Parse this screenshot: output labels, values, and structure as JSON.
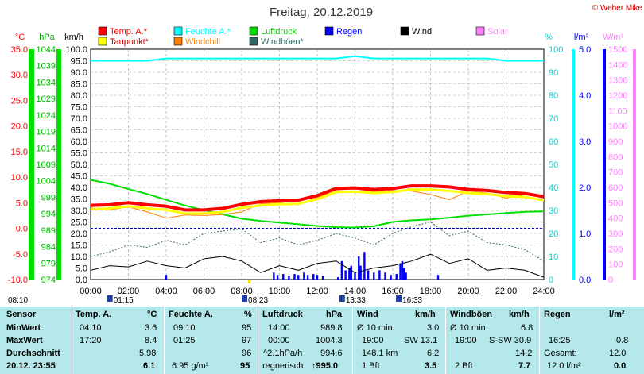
{
  "chart_data": {
    "type": "line",
    "title": "Freitag, 20.12.2019",
    "copyright": "© Weber Mike",
    "legend": [
      {
        "label": "Temp. A.*",
        "color": "#ff0000"
      },
      {
        "label": "Feuchte A.*",
        "color": "#00ffff"
      },
      {
        "label": "Luftdruck",
        "color": "#00e000"
      },
      {
        "label": "Regen",
        "color": "#0000ff"
      },
      {
        "label": "Wind",
        "color": "#000000"
      },
      {
        "label": "Solar",
        "color": "#ff80ff"
      },
      {
        "label": "Taupunkt*",
        "color": "#ffff00"
      },
      {
        "label": "Windchill",
        "color": "#ff8000"
      },
      {
        "label": "Windböen*",
        "color": "#336666"
      }
    ],
    "axes": {
      "temp": {
        "unit": "°C",
        "ticks": [
          "35.0",
          "30.0",
          "25.0",
          "20.0",
          "15.0",
          "10.0",
          "5.0",
          "0.0",
          "-5.0",
          "-10.0"
        ],
        "range": [
          -10,
          35
        ],
        "color": "#ff0000"
      },
      "pressure": {
        "unit": "hPa",
        "ticks": [
          "1044",
          "1039",
          "1034",
          "1029",
          "1024",
          "1019",
          "1014",
          "1009",
          "1004",
          "999",
          "994",
          "989",
          "984",
          "979",
          "974"
        ],
        "range": [
          974,
          1044
        ],
        "color": "#00b000"
      },
      "wind": {
        "unit": "km/h",
        "ticks": [
          "100.0",
          "95.0",
          "90.0",
          "85.0",
          "80.0",
          "75.0",
          "70.0",
          "65.0",
          "60.0",
          "55.0",
          "50.0",
          "45.0",
          "40.0",
          "35.0",
          "30.0",
          "25.0",
          "20.0",
          "15.0",
          "10.0",
          "5.0",
          "0.0"
        ],
        "range": [
          0,
          100
        ],
        "color": "#000000"
      },
      "humidity": {
        "unit": "%",
        "ticks": [
          "100",
          "90",
          "80",
          "70",
          "60",
          "50",
          "40",
          "30",
          "20",
          "10",
          "0"
        ],
        "range": [
          0,
          100
        ],
        "color": "#00d0d0"
      },
      "rain": {
        "unit": "l/m²",
        "ticks": [
          "5.0",
          "4.0",
          "3.0",
          "2.0",
          "1.0",
          "0.0"
        ],
        "range": [
          0,
          5
        ],
        "color": "#0000ff"
      },
      "solar": {
        "unit": "W/m²",
        "ticks": [
          "1500",
          "1400",
          "1300",
          "1200",
          "1100",
          "1000",
          "900",
          "800",
          "700",
          "600",
          "500",
          "400",
          "300",
          "200",
          "100",
          "0"
        ],
        "range": [
          0,
          1500
        ],
        "color": "#ff80ff"
      },
      "time": {
        "ticks": [
          "00:00",
          "02:00",
          "04:00",
          "06:00",
          "08:00",
          "10:00",
          "12:00",
          "14:00",
          "16:00",
          "18:00",
          "20:00",
          "22:00",
          "24:00"
        ],
        "range": [
          0,
          24
        ]
      }
    },
    "series": [
      {
        "name": "Temp. A.*",
        "axis": "temp",
        "color": "#ff0000",
        "x": [
          0,
          1,
          2,
          3,
          4,
          5,
          6,
          7,
          8,
          9,
          10,
          11,
          12,
          13,
          14,
          15,
          16,
          17,
          18,
          19,
          20,
          21,
          22,
          23,
          24
        ],
        "y": [
          4.5,
          4.6,
          5.0,
          4.6,
          4.3,
          3.6,
          3.6,
          3.9,
          4.7,
          5.2,
          5.4,
          5.5,
          6.4,
          7.8,
          7.9,
          7.6,
          7.8,
          8.3,
          8.3,
          8.1,
          7.6,
          7.4,
          7.0,
          6.8,
          6.2
        ]
      },
      {
        "name": "Taupunkt*",
        "axis": "temp",
        "color": "#ffff00",
        "x": [
          0,
          1,
          2,
          3,
          4,
          5,
          6,
          7,
          8,
          9,
          10,
          11,
          12,
          13,
          14,
          15,
          16,
          17,
          18,
          19,
          20,
          21,
          22,
          23,
          24
        ],
        "y": [
          3.7,
          3.9,
          4.3,
          3.9,
          3.6,
          2.9,
          2.9,
          3.2,
          4.0,
          4.5,
          4.7,
          4.8,
          5.7,
          7.1,
          7.2,
          6.9,
          7.1,
          7.6,
          7.6,
          7.3,
          6.9,
          6.7,
          6.3,
          6.1,
          5.5
        ]
      },
      {
        "name": "Windchill",
        "axis": "temp",
        "color": "#ff8000",
        "x": [
          0,
          1,
          2,
          3,
          4,
          5,
          6,
          7,
          8,
          9,
          10,
          11,
          12,
          13,
          14,
          15,
          16,
          17,
          18,
          19,
          20,
          21,
          22,
          23,
          24
        ],
        "y": [
          4.0,
          3.6,
          4.2,
          3.2,
          2.0,
          2.6,
          2.5,
          2.7,
          3.2,
          4.8,
          5.0,
          4.6,
          6.0,
          7.5,
          7.7,
          7.2,
          7.4,
          7.3,
          6.6,
          5.6,
          7.3,
          6.9,
          5.9,
          6.6,
          6.0
        ]
      },
      {
        "name": "Feuchte A.*",
        "axis": "humidity",
        "color": "#00ffff",
        "x": [
          0,
          1,
          2,
          3,
          4,
          5,
          6,
          7,
          8,
          9,
          10,
          11,
          12,
          13,
          14,
          15,
          16,
          17,
          18,
          19,
          20,
          21,
          22,
          23,
          24
        ],
        "y": [
          95,
          95,
          95,
          95,
          96,
          96,
          96,
          96,
          96,
          96,
          96,
          96,
          96,
          96,
          97,
          96,
          96,
          96,
          96,
          96,
          96,
          96,
          95,
          95,
          95
        ]
      },
      {
        "name": "Luftdruck",
        "axis": "pressure",
        "color": "#00e000",
        "x": [
          0,
          1,
          2,
          3,
          4,
          5,
          6,
          7,
          8,
          9,
          10,
          11,
          12,
          13,
          14,
          15,
          16,
          17,
          18,
          19,
          20,
          21,
          22,
          23,
          24
        ],
        "y": [
          1004.3,
          1003.1,
          1001.5,
          1000.0,
          998.2,
          996.5,
          995.1,
          993.8,
          992.5,
          991.8,
          991.3,
          990.8,
          990.3,
          989.9,
          989.8,
          990.2,
          991.5,
          992.0,
          992.3,
          992.8,
          993.4,
          993.8,
          994.2,
          994.6,
          994.7
        ]
      },
      {
        "name": "Wind",
        "axis": "wind",
        "color": "#000000",
        "x": [
          0,
          1,
          2,
          3,
          4,
          5,
          6,
          7,
          8,
          9,
          10,
          11,
          12,
          13,
          14,
          15,
          16,
          17,
          18,
          19,
          20,
          21,
          22,
          23,
          24
        ],
        "y": [
          4.0,
          6.0,
          5.5,
          8.0,
          6.0,
          5.0,
          9.0,
          10.0,
          8.0,
          3.0,
          6.0,
          4.0,
          7.0,
          8.0,
          3.0,
          5.0,
          6.0,
          8.0,
          11.0,
          7.0,
          9.0,
          4.0,
          5.0,
          4.0,
          1.0
        ]
      },
      {
        "name": "Windböen*",
        "axis": "wind",
        "color": "#336666",
        "x": [
          0,
          1,
          2,
          3,
          4,
          5,
          6,
          7,
          8,
          9,
          10,
          11,
          12,
          13,
          14,
          15,
          16,
          17,
          18,
          19,
          20,
          21,
          22,
          23,
          24
        ],
        "y": [
          10.0,
          12.0,
          15.0,
          14.0,
          17.0,
          15.0,
          20.0,
          21.0,
          22.0,
          16.0,
          18.0,
          15.0,
          17.0,
          20.0,
          18.0,
          15.0,
          20.0,
          23.0,
          25.0,
          19.0,
          21.0,
          16.0,
          15.0,
          13.0,
          8.0
        ]
      },
      {
        "name": "Regen",
        "axis": "rain",
        "type": "bar",
        "color": "#0000ff",
        "x": [
          4.0,
          9.7,
          9.9,
          10.2,
          10.5,
          10.8,
          11.0,
          11.3,
          11.5,
          11.8,
          12.0,
          12.3,
          13.1,
          13.3,
          13.5,
          13.7,
          13.8,
          14.0,
          14.2,
          14.3,
          14.5,
          14.7,
          15.0,
          15.3,
          15.6,
          15.9,
          16.2,
          16.4,
          16.5,
          16.6,
          16.7,
          18.4
        ],
        "y": [
          0.1,
          0.15,
          0.1,
          0.12,
          0.08,
          0.12,
          0.1,
          0.15,
          0.1,
          0.12,
          0.1,
          0.08,
          0.05,
          0.4,
          0.2,
          0.25,
          0.3,
          0.15,
          0.5,
          0.3,
          0.6,
          0.2,
          0.15,
          0.2,
          0.15,
          0.1,
          0.12,
          0.35,
          0.4,
          0.25,
          0.15,
          0.1
        ]
      }
    ],
    "zero_line": {
      "axis": "temp",
      "value": 0,
      "color": "#0000c0",
      "style": "dashed"
    },
    "markers": {
      "left_label": "08:10",
      "events": [
        {
          "label": "01:15",
          "x": 1.25
        },
        {
          "label": "08:23",
          "x": 8.38
        },
        {
          "label": "13:33",
          "x": 13.55
        },
        {
          "label": "16:33",
          "x": 16.55
        }
      ]
    },
    "grid": true
  },
  "stats": {
    "headers": {
      "sensor": "Sensor",
      "temp": "Temp. A.",
      "temp_unit": "°C",
      "hum": "Feuchte A.",
      "hum_unit": "%",
      "press": "Luftdruck",
      "press_unit": "hPa",
      "wind": "Wind",
      "wind_unit": "km/h",
      "gust": "Windböen",
      "gust_unit": "km/h",
      "rain": "Regen",
      "rain_unit": "l/m²"
    },
    "rows": {
      "min": {
        "label": "MinWert",
        "temp_t": "04:10",
        "temp_v": "3.6",
        "hum_t": "09:10",
        "hum_v": "95",
        "press_t": "14:00",
        "press_v": "989.8",
        "wind_t": "Ø 10 min.",
        "wind_v": "3.0",
        "gust_t": "Ø 10 min.",
        "gust_v": "6.8"
      },
      "max": {
        "label": "MaxWert",
        "temp_t": "17:20",
        "temp_v": "8.4",
        "hum_t": "01:25",
        "hum_v": "97",
        "press_t": "00:00",
        "press_v": "1004.3",
        "wind_t": "19:00",
        "wind_dir": "SW 13.1",
        "gust_t": "19:00",
        "gust_dir": "S-SW 30.9",
        "rain_t": "16:25",
        "rain_v": "0.8"
      },
      "avg": {
        "label": "Durchschnitt",
        "temp_v": "5.98",
        "hum_v": "96",
        "press_t": "^2.1hPa/h",
        "press_v": "994.6",
        "wind_t": "148.1 km",
        "wind_v": "6.2",
        "gust_v": "14.2",
        "rain_t": "Gesamt:",
        "rain_v": "12.0"
      },
      "cur": {
        "label": "20.12. 23:55",
        "temp_v": "6.1",
        "hum_t": "6.95 g/m³",
        "hum_v": "95",
        "press_t": "regnerisch",
        "press_v": "↑995.0",
        "wind_t": "1 Bft",
        "wind_v": "3.5",
        "gust_t": "2 Bft",
        "gust_v": "7.7",
        "rain_t": "12.0 l/m²",
        "rain_v": "0.0"
      }
    }
  }
}
